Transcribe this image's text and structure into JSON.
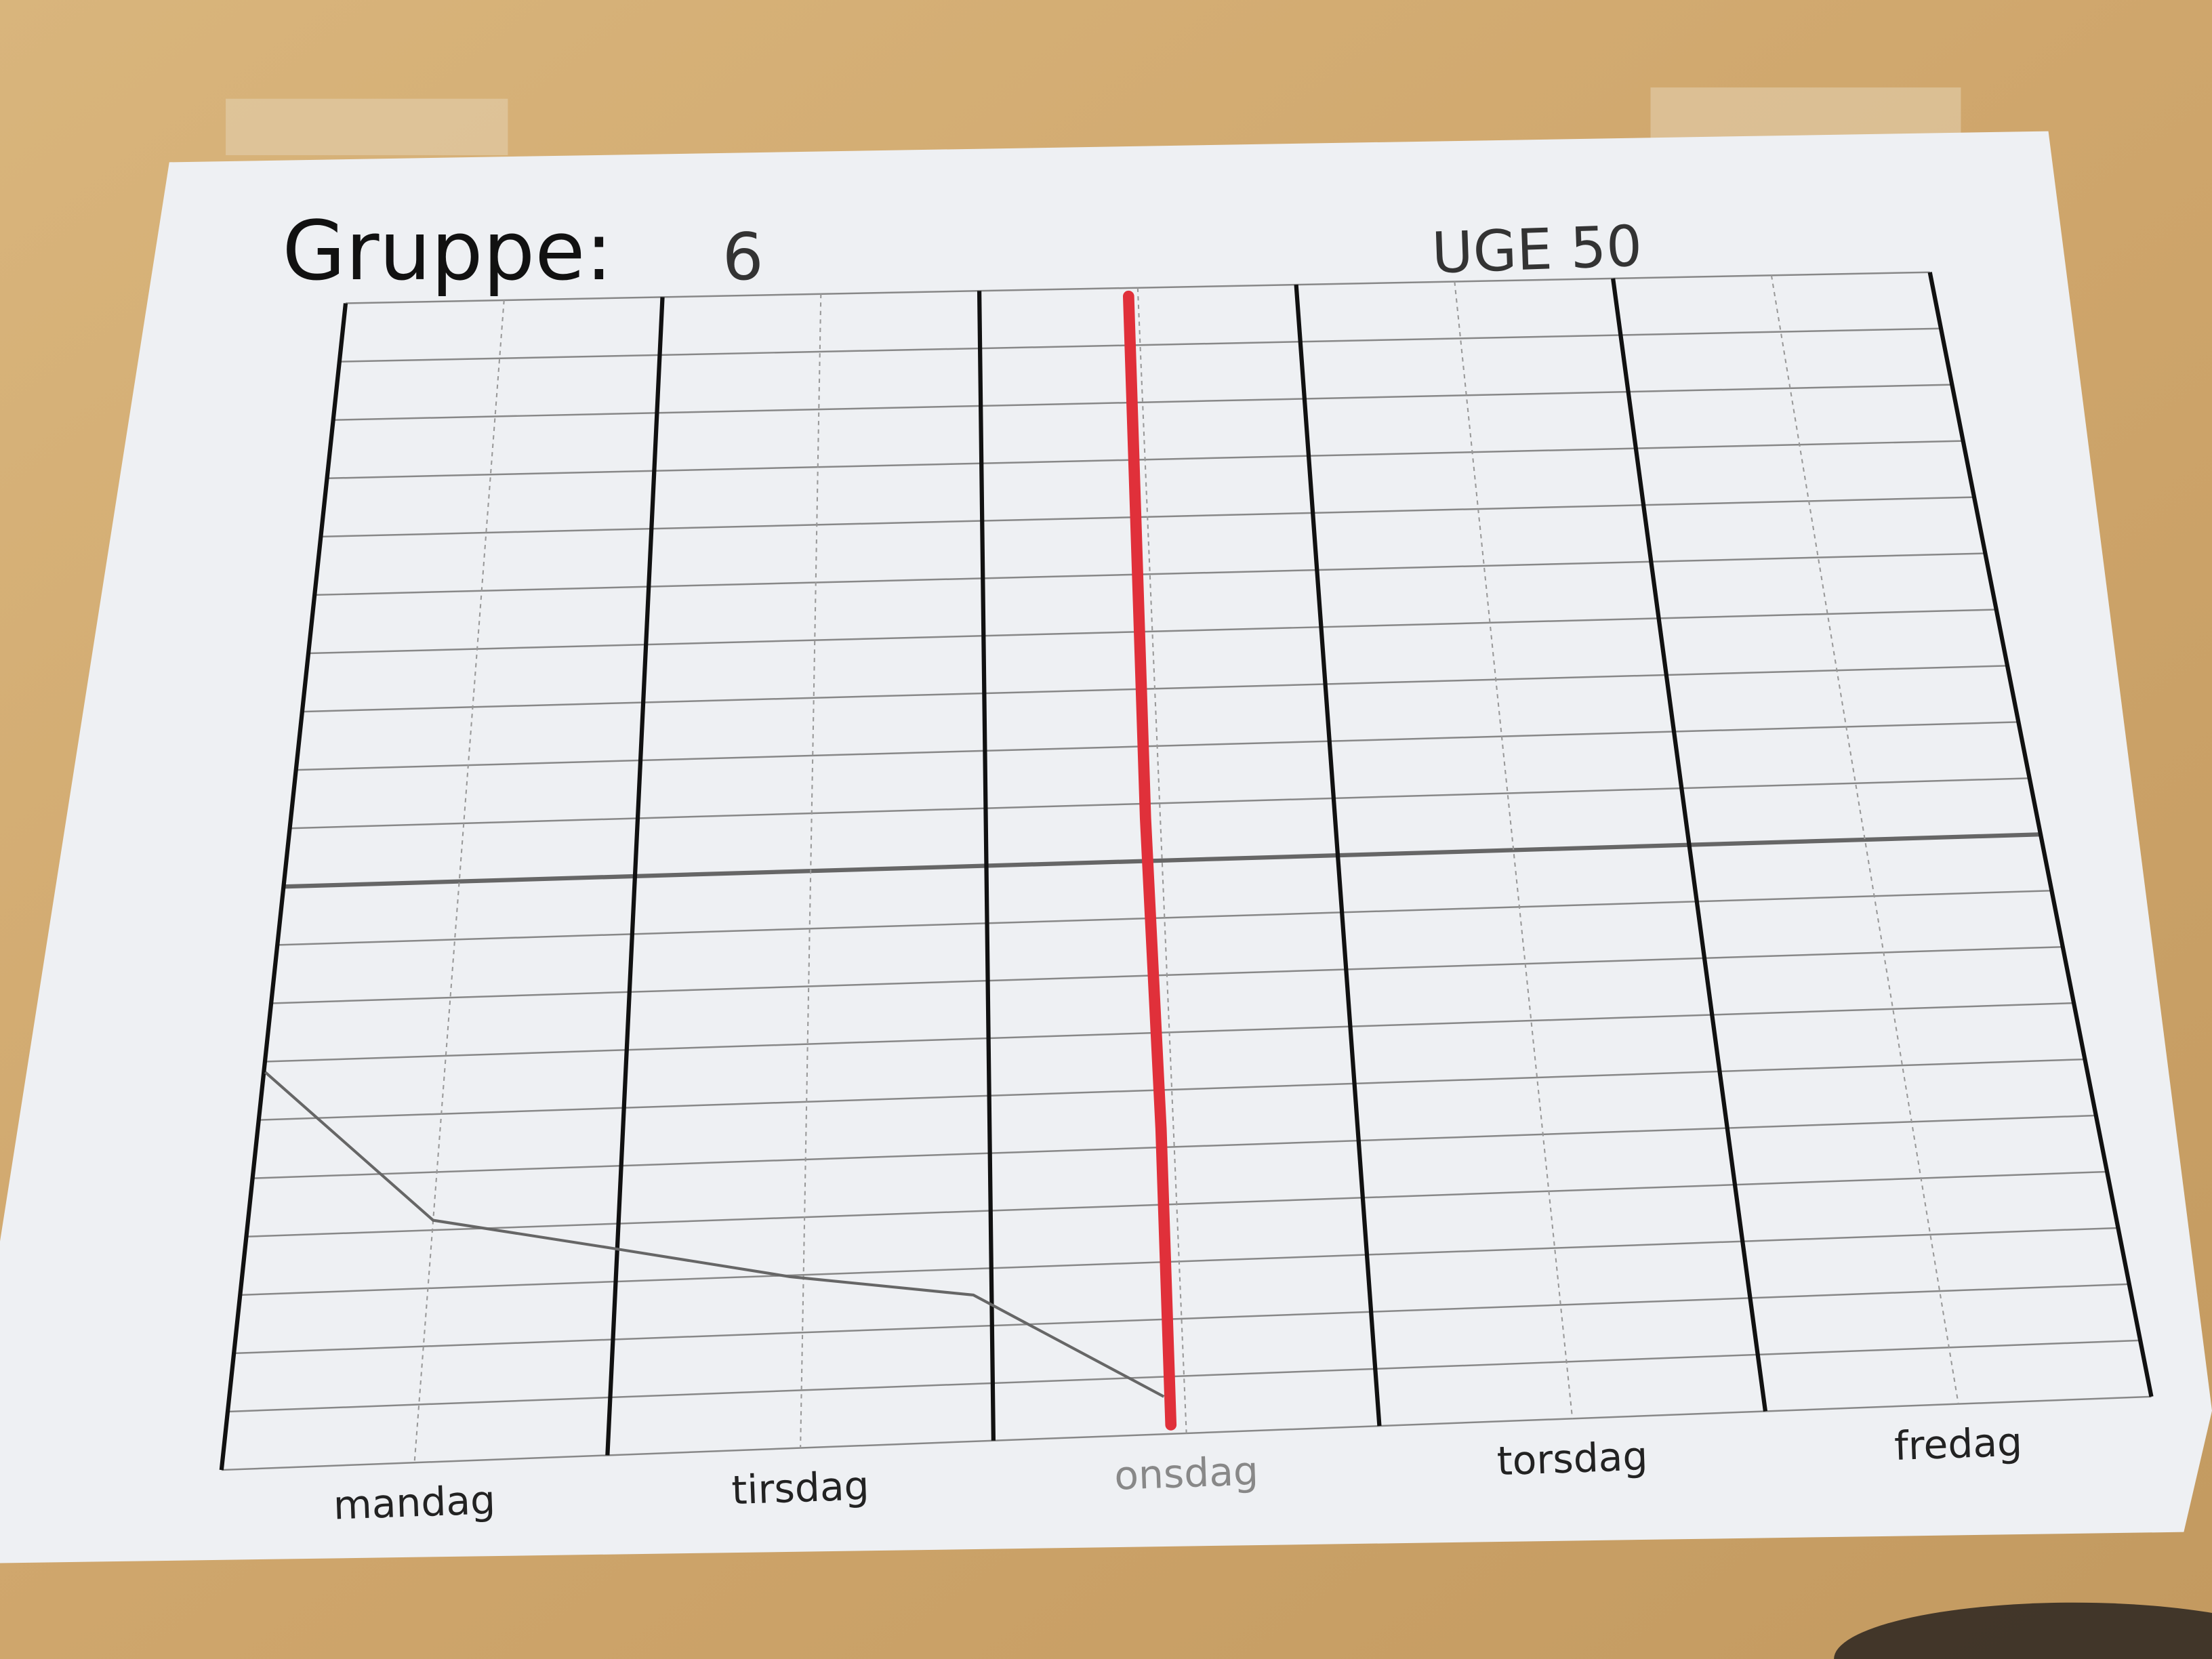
{
  "header": {
    "label": "Gruppe:",
    "group": "6",
    "week": "UGE 50"
  },
  "days": [
    "mandag",
    "tirsdag",
    "onsdag",
    "torsdag",
    "fredag"
  ]
}
